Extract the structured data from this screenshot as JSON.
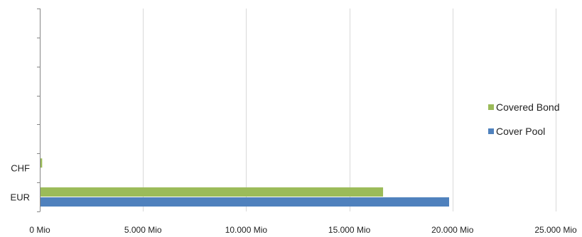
{
  "chart_data": {
    "type": "bar",
    "orientation": "horizontal",
    "categories": [
      "EUR",
      "CHF"
    ],
    "category_slots_top_to_bottom": [
      "",
      "",
      "",
      "",
      "",
      "CHF",
      "EUR"
    ],
    "series": [
      {
        "name": "Covered Bond",
        "color": "#9bbb59",
        "values": [
          16600,
          80
        ]
      },
      {
        "name": "Cover Pool",
        "color": "#4f81bd",
        "values": [
          19800,
          0
        ]
      }
    ],
    "xlim": [
      0,
      25000
    ],
    "x_ticks": [
      0,
      5000,
      10000,
      15000,
      20000,
      25000
    ],
    "x_tick_labels": [
      "0 Mio",
      "5.000 Mio",
      "10.000 Mio",
      "15.000 Mio",
      "20.000 Mio",
      "25.000 Mio"
    ],
    "grid": "vertical",
    "legend_position": "right",
    "title": "",
    "xlabel": "",
    "ylabel": ""
  }
}
